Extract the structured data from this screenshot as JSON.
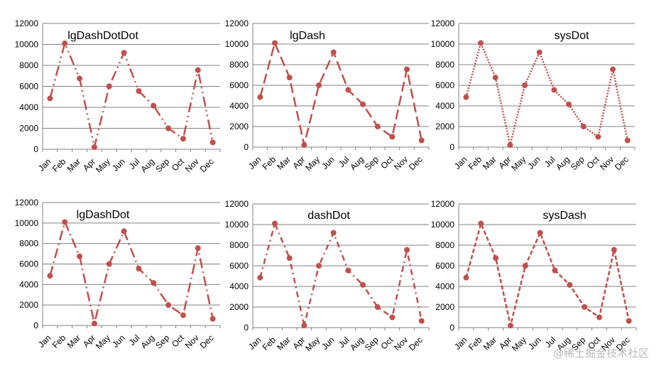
{
  "colors": {
    "series": "#C0504D",
    "grid": "#808080",
    "axis": "#808080"
  },
  "watermark": "@稀土掘金技术社区",
  "chart_data": [
    {
      "type": "line",
      "title": "lgDashDotDot",
      "line_style": "lgDashDotDot",
      "categories": [
        "Jan",
        "Feb",
        "Mar",
        "Apr",
        "May",
        "Jun",
        "Jul",
        "Aug",
        "Sep",
        "Oct",
        "Nov",
        "Dec"
      ],
      "yticks": [
        "0",
        "2000",
        "4000",
        "6000",
        "8000",
        "10000",
        "12000"
      ],
      "values": [
        4850,
        10100,
        6750,
        200,
        6000,
        9200,
        5550,
        4150,
        2000,
        1000,
        7550,
        650
      ],
      "ylim": [
        0,
        12000
      ],
      "grid": true,
      "legend": "none"
    },
    {
      "type": "line",
      "title": "lgDash",
      "line_style": "lgDash",
      "categories": [
        "Jan",
        "Feb",
        "Mar",
        "Apr",
        "May",
        "Jun",
        "Jul",
        "Aug",
        "Sep",
        "Oct",
        "Nov",
        "Dec"
      ],
      "yticks": [
        "0",
        "2000",
        "4000",
        "6000",
        "8000",
        "10000",
        "12000"
      ],
      "values": [
        4850,
        10100,
        6750,
        200,
        6000,
        9200,
        5550,
        4150,
        2000,
        1000,
        7550,
        650
      ],
      "ylim": [
        0,
        12000
      ],
      "grid": true,
      "legend": "none"
    },
    {
      "type": "line",
      "title": "sysDot",
      "line_style": "sysDot",
      "categories": [
        "Jan",
        "Feb",
        "Mar",
        "Apr",
        "May",
        "Jun",
        "Jul",
        "Aug",
        "Sep",
        "Oct",
        "Nov",
        "Dec"
      ],
      "yticks": [
        "0",
        "2000",
        "4000",
        "6000",
        "8000",
        "10000",
        "12000"
      ],
      "values": [
        4850,
        10100,
        6750,
        200,
        6000,
        9200,
        5550,
        4150,
        2000,
        1000,
        7550,
        650
      ],
      "ylim": [
        0,
        12000
      ],
      "grid": true,
      "legend": "none"
    },
    {
      "type": "line",
      "title": "lgDashDot",
      "line_style": "lgDashDot",
      "categories": [
        "Jan",
        "Feb",
        "Mar",
        "Apr",
        "May",
        "Jun",
        "Jul",
        "Aug",
        "Sep",
        "Oct",
        "Nov",
        "Dec"
      ],
      "yticks": [
        "0",
        "2000",
        "4000",
        "6000",
        "8000",
        "10000",
        "12000"
      ],
      "values": [
        4850,
        10100,
        6750,
        200,
        6000,
        9200,
        5550,
        4150,
        2000,
        1000,
        7550,
        650
      ],
      "ylim": [
        0,
        12000
      ],
      "grid": true,
      "legend": "none"
    },
    {
      "type": "line",
      "title": "dashDot",
      "line_style": "dashDot",
      "categories": [
        "Jan",
        "Feb",
        "Mar",
        "Apr",
        "May",
        "Jun",
        "Jul",
        "Aug",
        "Sep",
        "Oct",
        "Nov",
        "Dec"
      ],
      "yticks": [
        "0",
        "2000",
        "4000",
        "6000",
        "8000",
        "10000",
        "12000"
      ],
      "values": [
        4850,
        10100,
        6750,
        200,
        6000,
        9200,
        5550,
        4150,
        2000,
        1000,
        7550,
        650
      ],
      "ylim": [
        0,
        12000
      ],
      "grid": true,
      "legend": "none"
    },
    {
      "type": "line",
      "title": "sysDash",
      "line_style": "sysDash",
      "categories": [
        "Jan",
        "Feb",
        "Mar",
        "Apr",
        "May",
        "Jun",
        "Jul",
        "Aug",
        "Sep",
        "Oct",
        "Nov",
        "Dec"
      ],
      "yticks": [
        "0",
        "2000",
        "4000",
        "6000",
        "8000",
        "10000",
        "12000"
      ],
      "values": [
        4850,
        10100,
        6750,
        200,
        6000,
        9200,
        5550,
        4150,
        2000,
        1000,
        7550,
        650
      ],
      "ylim": [
        0,
        12000
      ],
      "grid": true,
      "legend": "none"
    }
  ]
}
